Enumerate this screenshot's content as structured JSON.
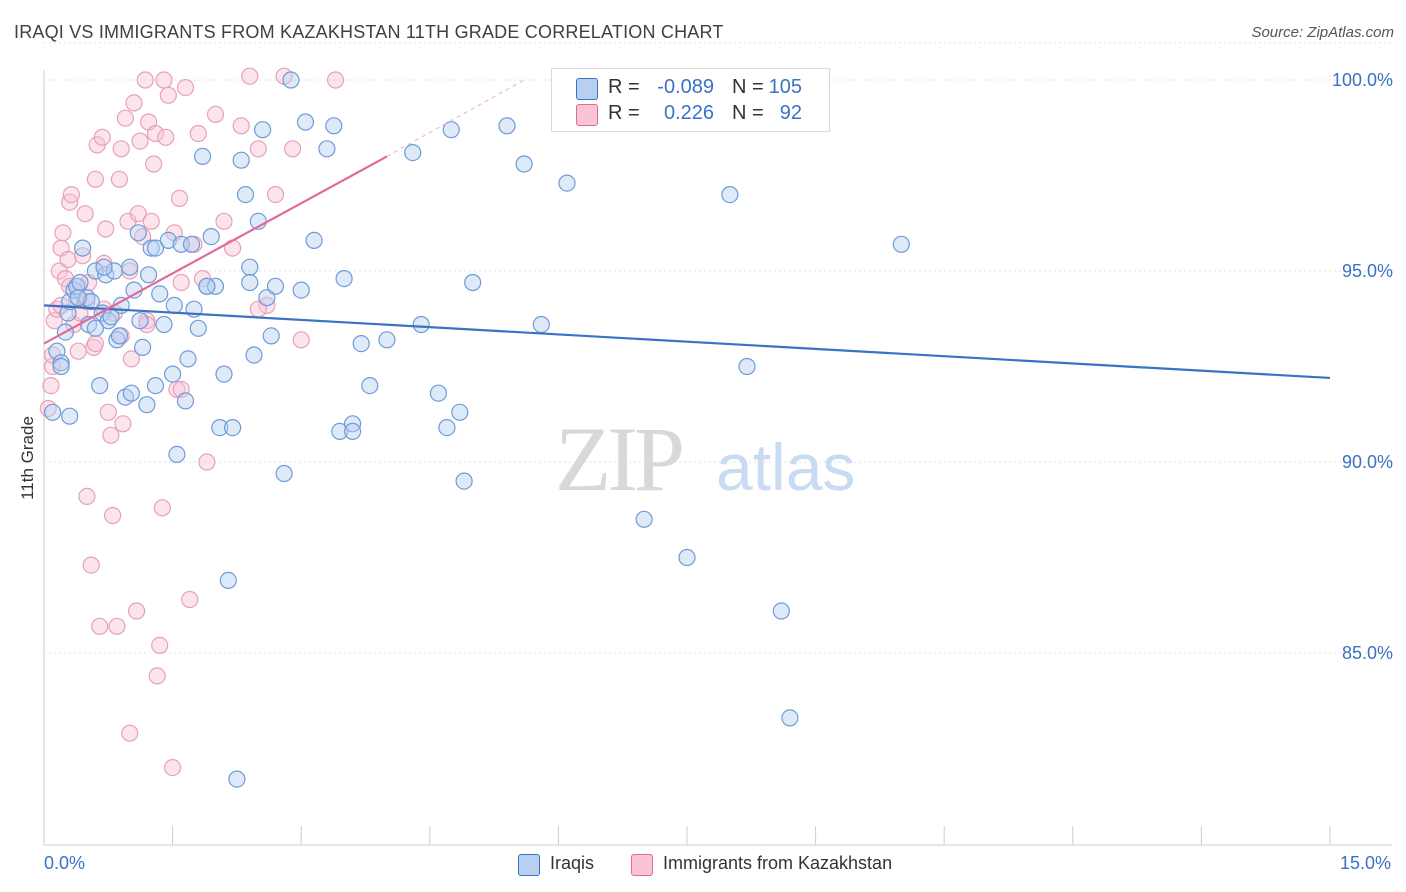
{
  "header": {
    "title": "IRAQI VS IMMIGRANTS FROM KAZAKHSTAN 11TH GRADE CORRELATION CHART",
    "source": "Source: ZipAtlas.com"
  },
  "legend_top": {
    "rows": [
      {
        "r_label": "R =",
        "r_value": "-0.089",
        "n_label": "N =",
        "n_value": "105"
      },
      {
        "r_label": "R =",
        "r_value": "0.226",
        "n_label": "N =",
        "n_value": "92"
      }
    ]
  },
  "legend_bottom": {
    "items": [
      {
        "label": "Iraqis"
      },
      {
        "label": "Immigrants from Kazakhstan"
      }
    ]
  },
  "axes": {
    "x_min_label": "0.0%",
    "x_max_label": "15.0%",
    "y_title": "11th Grade",
    "y_tick_labels": [
      "100.0%",
      "95.0%",
      "90.0%",
      "85.0%"
    ]
  },
  "watermark": {
    "zip": "ZIP",
    "atlas": "atlas"
  },
  "colors": {
    "blue": "#3a72c4",
    "blue_fill": "#b7d0f2",
    "pink": "#e06b98",
    "pink_fill": "#f8c4d6"
  },
  "chart_data": {
    "type": "scatter",
    "title": "IRAQI VS IMMIGRANTS FROM KAZAKHSTAN 11TH GRADE CORRELATION CHART",
    "xlabel": "",
    "ylabel": "11th Grade",
    "xlim": [
      0,
      15
    ],
    "ylim": [
      80.5,
      101
    ],
    "y_ticks": [
      100,
      95,
      90,
      85
    ],
    "grid": true,
    "legend_placement": "top-center",
    "series": [
      {
        "name": "Iraqis",
        "color": "#3a72c4",
        "r": -0.089,
        "n": 105,
        "trend": {
          "x0": 0,
          "y0": 94.1,
          "x1": 15,
          "y1": 92.2
        },
        "points": [
          [
            0.1,
            91.3
          ],
          [
            0.15,
            92.9
          ],
          [
            0.2,
            92.6
          ],
          [
            0.25,
            93.4
          ],
          [
            0.28,
            93.9
          ],
          [
            0.3,
            94.2
          ],
          [
            0.35,
            94.5
          ],
          [
            0.38,
            94.6
          ],
          [
            0.42,
            94.7
          ],
          [
            0.45,
            95.6
          ],
          [
            0.5,
            94.3
          ],
          [
            0.52,
            93.6
          ],
          [
            0.55,
            94.2
          ],
          [
            0.6,
            95.0
          ],
          [
            0.65,
            92.0
          ],
          [
            0.68,
            93.9
          ],
          [
            0.72,
            94.9
          ],
          [
            0.75,
            93.7
          ],
          [
            0.78,
            93.8
          ],
          [
            0.82,
            95.0
          ],
          [
            0.85,
            93.2
          ],
          [
            0.88,
            93.3
          ],
          [
            0.9,
            94.1
          ],
          [
            0.95,
            91.7
          ],
          [
            1.0,
            95.1
          ],
          [
            1.02,
            91.8
          ],
          [
            1.05,
            94.5
          ],
          [
            1.1,
            96.0
          ],
          [
            1.12,
            93.7
          ],
          [
            1.15,
            93.0
          ],
          [
            1.2,
            91.5
          ],
          [
            1.22,
            94.9
          ],
          [
            1.25,
            95.6
          ],
          [
            1.3,
            92.0
          ],
          [
            1.35,
            94.4
          ],
          [
            1.4,
            93.6
          ],
          [
            1.45,
            95.8
          ],
          [
            1.5,
            92.3
          ],
          [
            1.52,
            94.1
          ],
          [
            1.55,
            90.2
          ],
          [
            1.6,
            95.7
          ],
          [
            1.65,
            91.6
          ],
          [
            1.68,
            92.7
          ],
          [
            1.72,
            95.7
          ],
          [
            1.75,
            94.0
          ],
          [
            1.8,
            93.5
          ],
          [
            1.85,
            98.0
          ],
          [
            1.9,
            94.6
          ],
          [
            1.95,
            95.9
          ],
          [
            2.0,
            94.6
          ],
          [
            2.05,
            90.9
          ],
          [
            2.1,
            92.3
          ],
          [
            2.15,
            86.9
          ],
          [
            2.2,
            90.9
          ],
          [
            2.25,
            81.7
          ],
          [
            2.3,
            97.9
          ],
          [
            2.35,
            97.0
          ],
          [
            2.4,
            95.1
          ],
          [
            2.45,
            92.8
          ],
          [
            2.5,
            96.3
          ],
          [
            2.55,
            98.7
          ],
          [
            2.6,
            94.3
          ],
          [
            2.65,
            93.3
          ],
          [
            2.7,
            94.6
          ],
          [
            2.8,
            89.7
          ],
          [
            2.88,
            100.0
          ],
          [
            3.0,
            94.5
          ],
          [
            3.05,
            98.9
          ],
          [
            3.15,
            95.8
          ],
          [
            3.3,
            98.2
          ],
          [
            3.38,
            98.8
          ],
          [
            3.45,
            90.8
          ],
          [
            3.5,
            94.8
          ],
          [
            3.6,
            91.0
          ],
          [
            3.7,
            93.1
          ],
          [
            3.8,
            92.0
          ],
          [
            4.0,
            93.2
          ],
          [
            4.3,
            98.1
          ],
          [
            4.4,
            93.6
          ],
          [
            4.6,
            91.8
          ],
          [
            4.7,
            90.9
          ],
          [
            4.75,
            98.7
          ],
          [
            4.85,
            91.3
          ],
          [
            4.9,
            89.5
          ],
          [
            5.0,
            94.7
          ],
          [
            5.4,
            98.8
          ],
          [
            5.6,
            97.8
          ],
          [
            5.8,
            93.6
          ],
          [
            6.1,
            97.3
          ],
          [
            7.0,
            88.5
          ],
          [
            7.5,
            87.5
          ],
          [
            8.0,
            97.0
          ],
          [
            8.2,
            92.5
          ],
          [
            8.6,
            86.1
          ],
          [
            8.7,
            83.3
          ],
          [
            10.0,
            95.7
          ],
          [
            0.2,
            92.5
          ],
          [
            0.4,
            94.3
          ],
          [
            0.6,
            93.5
          ],
          [
            0.3,
            91.2
          ],
          [
            1.9,
            94.6
          ],
          [
            2.4,
            94.7
          ],
          [
            3.6,
            90.8
          ],
          [
            1.3,
            95.6
          ],
          [
            0.7,
            95.1
          ]
        ]
      },
      {
        "name": "Immigrants from Kazakhstan",
        "color": "#e06b98",
        "r": 0.226,
        "n": 92,
        "trend": {
          "x0": 0,
          "y0": 93.1,
          "x1": 4.0,
          "y1": 98.0
        },
        "trend_extension": {
          "x0": 4.0,
          "y0": 98.0,
          "x1": 5.6,
          "y1": 100.0
        },
        "points": [
          [
            0.05,
            91.4
          ],
          [
            0.08,
            92.0
          ],
          [
            0.1,
            92.5
          ],
          [
            0.12,
            93.7
          ],
          [
            0.15,
            94.0
          ],
          [
            0.18,
            95.0
          ],
          [
            0.2,
            95.6
          ],
          [
            0.22,
            96.0
          ],
          [
            0.25,
            94.8
          ],
          [
            0.28,
            95.3
          ],
          [
            0.3,
            96.8
          ],
          [
            0.32,
            97.0
          ],
          [
            0.35,
            93.6
          ],
          [
            0.38,
            94.3
          ],
          [
            0.4,
            92.9
          ],
          [
            0.42,
            93.9
          ],
          [
            0.45,
            95.4
          ],
          [
            0.48,
            96.5
          ],
          [
            0.5,
            89.1
          ],
          [
            0.52,
            94.7
          ],
          [
            0.55,
            87.3
          ],
          [
            0.58,
            93.0
          ],
          [
            0.6,
            97.4
          ],
          [
            0.62,
            98.3
          ],
          [
            0.65,
            85.7
          ],
          [
            0.68,
            98.5
          ],
          [
            0.7,
            95.2
          ],
          [
            0.72,
            96.1
          ],
          [
            0.75,
            91.3
          ],
          [
            0.78,
            90.7
          ],
          [
            0.8,
            88.6
          ],
          [
            0.82,
            93.9
          ],
          [
            0.85,
            85.7
          ],
          [
            0.88,
            97.4
          ],
          [
            0.9,
            98.2
          ],
          [
            0.92,
            91.0
          ],
          [
            0.95,
            99.0
          ],
          [
            0.98,
            96.3
          ],
          [
            1.0,
            95.0
          ],
          [
            1.02,
            92.7
          ],
          [
            1.05,
            99.4
          ],
          [
            1.08,
            86.1
          ],
          [
            1.1,
            96.5
          ],
          [
            1.12,
            98.4
          ],
          [
            1.15,
            95.9
          ],
          [
            1.18,
            100.0
          ],
          [
            1.2,
            93.7
          ],
          [
            1.22,
            98.9
          ],
          [
            1.25,
            96.3
          ],
          [
            1.28,
            97.8
          ],
          [
            1.3,
            98.6
          ],
          [
            1.32,
            84.4
          ],
          [
            1.35,
            85.2
          ],
          [
            1.38,
            88.8
          ],
          [
            1.4,
            100.0
          ],
          [
            1.42,
            98.5
          ],
          [
            1.45,
            99.6
          ],
          [
            1.5,
            82.0
          ],
          [
            1.52,
            96.0
          ],
          [
            1.55,
            91.9
          ],
          [
            1.58,
            96.9
          ],
          [
            1.6,
            94.7
          ],
          [
            1.65,
            99.8
          ],
          [
            1.7,
            86.4
          ],
          [
            1.75,
            95.7
          ],
          [
            1.8,
            98.6
          ],
          [
            1.85,
            94.8
          ],
          [
            1.9,
            90.0
          ],
          [
            2.0,
            99.1
          ],
          [
            2.1,
            96.3
          ],
          [
            2.2,
            95.6
          ],
          [
            2.3,
            98.8
          ],
          [
            2.4,
            100.1
          ],
          [
            2.5,
            98.2
          ],
          [
            2.6,
            94.1
          ],
          [
            2.7,
            97.0
          ],
          [
            2.8,
            100.1
          ],
          [
            2.9,
            98.2
          ],
          [
            3.0,
            93.2
          ],
          [
            3.4,
            100.0
          ],
          [
            0.1,
            92.8
          ],
          [
            0.2,
            94.1
          ],
          [
            0.3,
            94.6
          ],
          [
            0.4,
            94.6
          ],
          [
            0.5,
            94.2
          ],
          [
            0.6,
            93.1
          ],
          [
            0.7,
            94.0
          ],
          [
            1.0,
            82.9
          ],
          [
            1.2,
            93.6
          ],
          [
            1.6,
            91.9
          ],
          [
            2.5,
            94.0
          ],
          [
            0.9,
            93.3
          ]
        ]
      }
    ]
  }
}
